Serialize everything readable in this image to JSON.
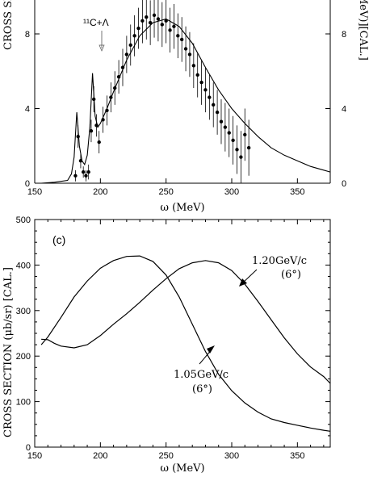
{
  "chart_data": [
    {
      "type": "scatter",
      "title": "",
      "xlabel": "ω (MeV)",
      "ylabel": "CROSS SE",
      "ylabel_right": "MeV)][CAL.]",
      "xlim": [
        150,
        375
      ],
      "ylim": [
        0,
        10
      ],
      "xticks": [
        "150",
        "200",
        "250",
        "300",
        "350"
      ],
      "yticks_left": [
        "0",
        "4",
        "8"
      ],
      "yticks_right": [
        "0",
        "4",
        "8"
      ],
      "annotation": "¹¹C+Λ",
      "series": [
        {
          "type": "scatter",
          "x": [
            181,
            183,
            185,
            187,
            189,
            191,
            193,
            195,
            197,
            199,
            202,
            205,
            208,
            211,
            214,
            217,
            220,
            223,
            226,
            229,
            232,
            235,
            238,
            241,
            244,
            247,
            250,
            253,
            256,
            259,
            262,
            265,
            268,
            271,
            274,
            277,
            280,
            283,
            286,
            289,
            292,
            295,
            298,
            301,
            304,
            307,
            310,
            313
          ],
          "y": [
            0.4,
            2.5,
            1.2,
            0.6,
            0.4,
            0.6,
            2.8,
            4.5,
            3.1,
            2.2,
            3.4,
            3.9,
            4.6,
            5.1,
            5.7,
            6.2,
            6.9,
            7.4,
            7.9,
            8.3,
            8.7,
            8.9,
            8.6,
            9.0,
            8.8,
            8.5,
            8.7,
            8.2,
            8.4,
            7.9,
            7.7,
            7.2,
            6.9,
            6.3,
            5.8,
            5.4,
            5.0,
            4.6,
            4.2,
            3.8,
            3.3,
            3.0,
            2.7,
            2.3,
            1.8,
            1.4,
            2.6,
            1.9
          ],
          "err": [
            0.3,
            0.6,
            0.4,
            0.3,
            0.3,
            0.4,
            0.6,
            0.7,
            0.6,
            0.6,
            0.7,
            0.8,
            0.8,
            0.9,
            0.9,
            1.0,
            1.0,
            1.1,
            1.1,
            1.1,
            1.2,
            1.2,
            1.2,
            1.2,
            1.2,
            1.2,
            1.2,
            1.2,
            1.2,
            1.2,
            1.2,
            1.2,
            1.2,
            1.2,
            1.2,
            1.2,
            1.2,
            1.2,
            1.2,
            1.2,
            1.2,
            1.3,
            1.3,
            1.3,
            1.3,
            1.4,
            1.4,
            1.5
          ]
        },
        {
          "type": "line",
          "x": [
            155,
            165,
            175,
            178,
            180,
            182,
            184,
            186,
            188,
            190,
            192,
            194,
            196,
            198,
            200,
            205,
            210,
            220,
            230,
            240,
            250,
            260,
            270,
            280,
            290,
            300,
            310,
            320,
            330,
            340,
            350,
            360,
            370,
            375
          ],
          "y": [
            0.0,
            0.05,
            0.15,
            0.5,
            1.4,
            3.8,
            2.0,
            1.2,
            1.0,
            1.5,
            3.0,
            5.9,
            3.6,
            3.0,
            3.2,
            4.0,
            4.9,
            6.6,
            7.9,
            8.6,
            8.8,
            8.4,
            7.5,
            6.2,
            5.0,
            4.0,
            3.2,
            2.5,
            1.9,
            1.5,
            1.2,
            0.9,
            0.7,
            0.6
          ]
        }
      ]
    },
    {
      "type": "line",
      "title": "",
      "panel_label": "(c)",
      "xlabel": "ω (MeV)",
      "ylabel": "CROSS SECTION (μb/sr) [CAL.]",
      "xlim": [
        150,
        375
      ],
      "ylim": [
        0,
        500
      ],
      "xticks": [
        "150",
        "200",
        "250",
        "300",
        "350"
      ],
      "yticks": [
        "0",
        "100",
        "200",
        "300",
        "400",
        "500"
      ],
      "series": [
        {
          "name": "1.05GeV/c",
          "angle": "(6°)",
          "x": [
            155,
            160,
            170,
            180,
            190,
            200,
            210,
            220,
            230,
            240,
            250,
            260,
            270,
            280,
            290,
            300,
            310,
            320,
            330,
            340,
            350,
            360,
            370,
            375
          ],
          "y": [
            225,
            242,
            285,
            330,
            365,
            393,
            410,
            419,
            420,
            408,
            378,
            330,
            270,
            210,
            160,
            124,
            97,
            77,
            62,
            54,
            48,
            42,
            37,
            35
          ]
        },
        {
          "name": "1.20GeV/c",
          "angle": "(6°)",
          "x": [
            155,
            160,
            165,
            170,
            180,
            190,
            200,
            210,
            220,
            230,
            240,
            250,
            260,
            270,
            280,
            290,
            300,
            310,
            320,
            330,
            340,
            350,
            360,
            370,
            375
          ],
          "y": [
            237,
            236,
            228,
            222,
            218,
            225,
            245,
            270,
            293,
            318,
            345,
            370,
            392,
            405,
            410,
            405,
            388,
            358,
            320,
            280,
            240,
            205,
            176,
            155,
            140
          ]
        }
      ]
    }
  ]
}
